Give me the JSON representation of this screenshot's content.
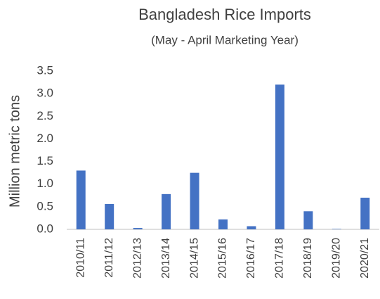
{
  "chart_data": {
    "type": "bar",
    "title": "Bangladesh Rice Imports",
    "subtitle": "(May - April Marketing Year)",
    "y_label": "Million metric tons",
    "categories": [
      "2010/11",
      "2011/12",
      "2012/13",
      "2013/14",
      "2014/15",
      "2015/16",
      "2016/17",
      "2017/18",
      "2018/19",
      "2019/20",
      "2020/21"
    ],
    "values": [
      1.3,
      0.56,
      0.03,
      0.78,
      1.25,
      0.22,
      0.07,
      3.2,
      0.4,
      0.01,
      0.7
    ],
    "color": "#4472c4",
    "ylim": [
      0,
      3.5
    ],
    "yticks": [
      {
        "value": 0,
        "label": "0.0"
      },
      0.5,
      {
        "value": 1,
        "label": "1.0"
      },
      1.5,
      {
        "value": 2,
        "label": "2.0"
      },
      2.5,
      {
        "value": 3,
        "label": "3.0"
      },
      3.5
    ],
    "grid": false
  }
}
